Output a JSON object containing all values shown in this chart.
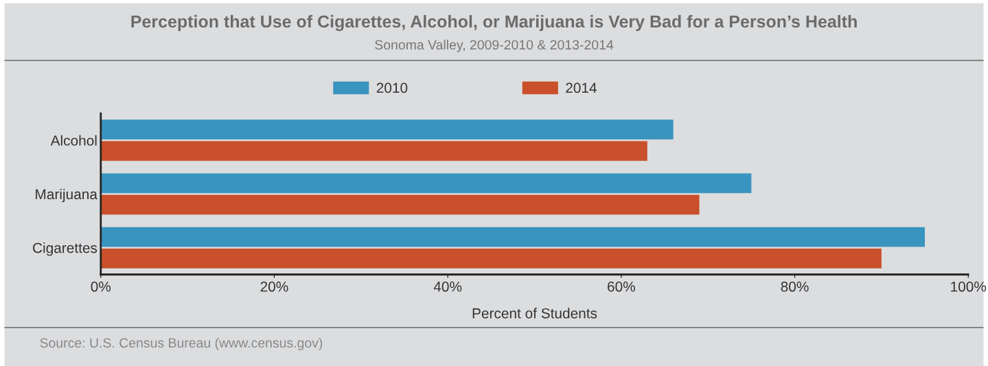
{
  "chart_data": {
    "type": "bar",
    "orientation": "horizontal",
    "title": "Perception that Use of Cigarettes, Alcohol, or Marijuana is Very Bad for a Person’s Health",
    "subtitle": "Sonoma Valley, 2009-2010 & 2013-2014",
    "xlabel": "Percent of Students",
    "categories": [
      "Alcohol",
      "Marijuana",
      "Cigarettes"
    ],
    "series": [
      {
        "name": "2010",
        "color": "#3a94c0",
        "values": [
          66,
          75,
          95
        ]
      },
      {
        "name": "2014",
        "color": "#c9502a",
        "values": [
          63,
          69,
          90
        ]
      }
    ],
    "xlim": [
      0,
      100
    ],
    "xticks": [
      {
        "value": 0,
        "label": "0%"
      },
      {
        "value": 20,
        "label": "20%"
      },
      {
        "value": 40,
        "label": "40%"
      },
      {
        "value": 60,
        "label": "60%"
      },
      {
        "value": 80,
        "label": "80%"
      },
      {
        "value": 100,
        "label": "100%"
      }
    ],
    "grid": false,
    "legend": "top",
    "annotations": [
      "Source: U.S. Census Bureau (www.census.gov)"
    ]
  }
}
